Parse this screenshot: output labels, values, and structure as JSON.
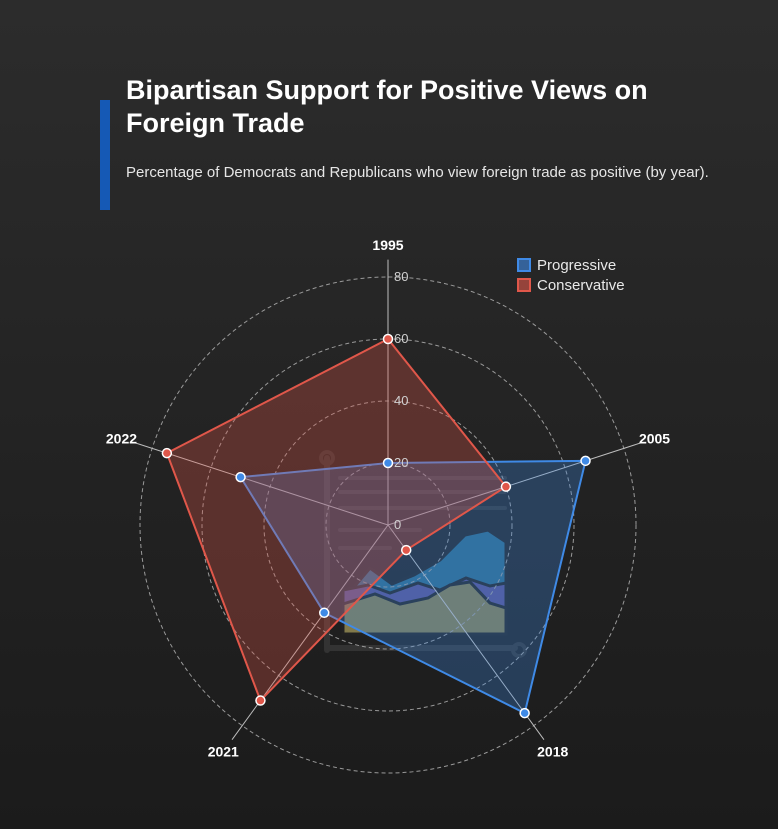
{
  "header": {
    "title": "Bipartisan Support for Positive Views on Foreign Trade",
    "subtitle": "Percentage of Democrats and Republicans who view foreign trade as positive (by year)."
  },
  "legend": {
    "items": [
      {
        "label": "Progressive",
        "color": "#3f8ae6"
      },
      {
        "label": "Conservative",
        "color": "#e0574a"
      }
    ]
  },
  "chart_data": {
    "type": "radar",
    "categories": [
      "1995",
      "2005",
      "2018",
      "2021",
      "2022"
    ],
    "r_ticks": [
      "0",
      "20",
      "40",
      "60",
      "80"
    ],
    "rlim": [
      0,
      80
    ],
    "grid": true,
    "legend_position": "top-right",
    "series": [
      {
        "name": "Progressive",
        "values": [
          20,
          67,
          75,
          35,
          50
        ],
        "color": "#3f8ae6"
      },
      {
        "name": "Conservative",
        "values": [
          60,
          40,
          10,
          70,
          75
        ],
        "color": "#e0574a"
      }
    ]
  }
}
